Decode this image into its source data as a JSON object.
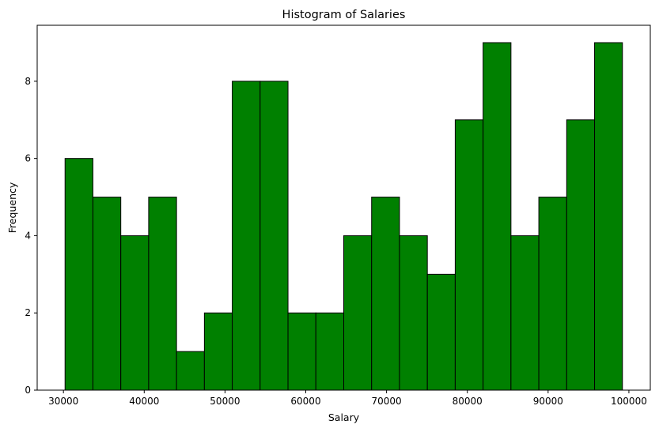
{
  "chart_data": {
    "type": "bar",
    "title": "Histogram of Salaries",
    "xlabel": "Salary",
    "ylabel": "Frequency",
    "bins": [
      [
        30200,
        33650
      ],
      [
        33650,
        37100
      ],
      [
        37100,
        40550
      ],
      [
        40550,
        44000
      ],
      [
        44000,
        47450
      ],
      [
        47450,
        50900
      ],
      [
        50900,
        54350
      ],
      [
        54350,
        57800
      ],
      [
        57800,
        61250
      ],
      [
        61250,
        64700
      ],
      [
        64700,
        68150
      ],
      [
        68150,
        71600
      ],
      [
        71600,
        75050
      ],
      [
        75050,
        78500
      ],
      [
        78500,
        81950
      ],
      [
        81950,
        85400
      ],
      [
        85400,
        88850
      ],
      [
        88850,
        92300
      ],
      [
        92300,
        95750
      ],
      [
        95750,
        99200
      ]
    ],
    "values": [
      6,
      5,
      4,
      5,
      1,
      2,
      8,
      8,
      2,
      2,
      4,
      5,
      4,
      3,
      7,
      9,
      4,
      5,
      7,
      9
    ],
    "bar_color": "#008000",
    "edge_color": "#000000",
    "xlim": [
      26750,
      102650
    ],
    "ylim": [
      0,
      9.45
    ],
    "xticks": [
      30000,
      40000,
      50000,
      60000,
      70000,
      80000,
      90000,
      100000
    ],
    "yticks": [
      0,
      2,
      4,
      6,
      8
    ],
    "grid": false
  }
}
